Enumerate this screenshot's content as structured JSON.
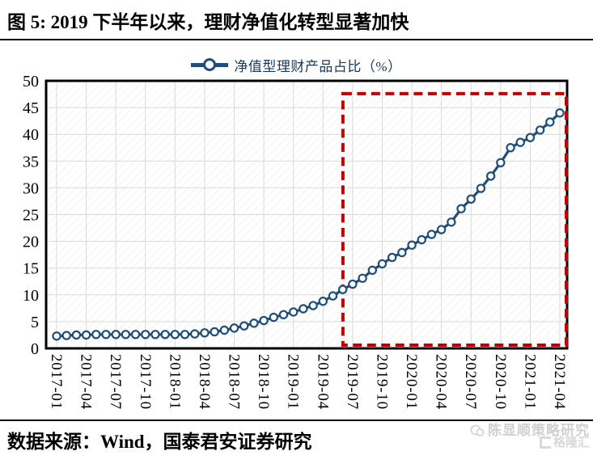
{
  "figure": {
    "title": "图 5:  2019 下半年以来，理财净值化转型显著加快",
    "source": "数据来源：Wind，国泰君安证券研究",
    "watermark": {
      "author": "陈显顺策略研究",
      "site": "格隆汇"
    }
  },
  "chart_data": {
    "type": "line",
    "series_name": "净值型理财产品占比（%）",
    "frequency": "monthly",
    "x_start": "2017-01",
    "x_end": "2021-04",
    "x_tick_labels": [
      "2017-01",
      "2017-04",
      "2017-07",
      "2017-10",
      "2018-01",
      "2018-04",
      "2018-07",
      "2018-10",
      "2019-01",
      "2019-04",
      "2019-07",
      "2019-10",
      "2020-01",
      "2020-04",
      "2020-07",
      "2020-10",
      "2021-01",
      "2021-04"
    ],
    "values": [
      2.3,
      2.4,
      2.5,
      2.5,
      2.6,
      2.6,
      2.6,
      2.6,
      2.6,
      2.6,
      2.6,
      2.6,
      2.6,
      2.6,
      2.7,
      2.9,
      3.1,
      3.4,
      3.8,
      4.2,
      4.7,
      5.2,
      5.8,
      6.3,
      6.8,
      7.4,
      8.0,
      8.8,
      9.8,
      11.0,
      12.0,
      13.1,
      14.6,
      15.8,
      17.0,
      17.9,
      19.3,
      20.3,
      21.3,
      22.2,
      23.6,
      26.1,
      27.9,
      29.9,
      32.2,
      34.7,
      37.5,
      38.5,
      39.4,
      40.8,
      42.3,
      44.0
    ],
    "ylim": [
      0,
      50
    ],
    "ytick_step": 5,
    "grid": true,
    "legend_position": "top-center",
    "marker": "circle-open",
    "highlight_box": {
      "from": "2019-07",
      "to": "2021-04",
      "y_from": 0.6,
      "y_to": 47.6,
      "style": "dashed"
    },
    "colors": {
      "line": "#1F4E79",
      "marker_fill": "#FFFFFF",
      "grid": "#D9D9D9",
      "plot_border": "#000000",
      "highlight": "#C00000",
      "axis_text": "#000000",
      "hatch": "#ECECEC"
    }
  }
}
